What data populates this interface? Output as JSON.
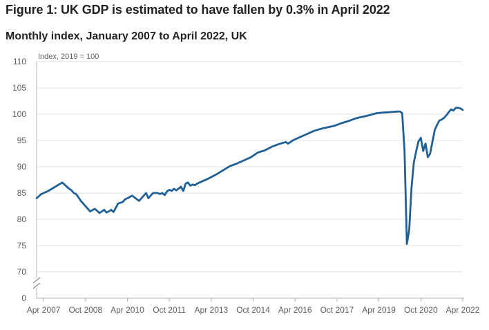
{
  "chart_data": {
    "type": "line",
    "title": "Figure 1: UK GDP is estimated to have fallen by 0.3% in April 2022",
    "subtitle": "Monthly index, January 2007 to April 2022, UK",
    "ylabel": "Index, 2019 = 100",
    "ylim": [
      0,
      110
    ],
    "y_axis_break": true,
    "y_ticks": [
      0,
      70,
      75,
      80,
      85,
      90,
      95,
      100,
      105,
      110
    ],
    "x_tick_labels": [
      "Apr 2007",
      "Oct 2008",
      "Apr 2010",
      "Oct 2011",
      "Apr 2013",
      "Oct 2014",
      "Apr 2016",
      "Oct 2017",
      "Apr 2019",
      "Oct 2020",
      "Apr 2022"
    ],
    "grid": "horizontal",
    "line_color": "#206095",
    "x_start": "2007-01",
    "x_end": "2022-04",
    "series": [
      {
        "name": "",
        "x": [
          "2007-01",
          "2007-03",
          "2007-06",
          "2007-09",
          "2007-12",
          "2008-03",
          "2008-04",
          "2008-05",
          "2008-06",
          "2008-08",
          "2008-10",
          "2008-12",
          "2009-02",
          "2009-04",
          "2009-05",
          "2009-06",
          "2009-07",
          "2009-08",
          "2009-09",
          "2009-10",
          "2009-12",
          "2010-02",
          "2010-03",
          "2010-04",
          "2010-06",
          "2010-09",
          "2010-12",
          "2011-01",
          "2011-03",
          "2011-05",
          "2011-06",
          "2011-07",
          "2011-08",
          "2011-09",
          "2011-10",
          "2011-11",
          "2011-12",
          "2012-01",
          "2012-03",
          "2012-04",
          "2012-05",
          "2012-06",
          "2012-07",
          "2012-08",
          "2012-09",
          "2012-10",
          "2012-12",
          "2013-03",
          "2013-06",
          "2013-09",
          "2013-12",
          "2014-03",
          "2014-06",
          "2014-09",
          "2014-12",
          "2015-03",
          "2015-06",
          "2015-09",
          "2015-12",
          "2016-01",
          "2016-03",
          "2016-06",
          "2016-09",
          "2016-12",
          "2017-03",
          "2017-06",
          "2017-09",
          "2017-12",
          "2018-03",
          "2018-06",
          "2018-09",
          "2018-12",
          "2019-03",
          "2019-06",
          "2019-09",
          "2019-12",
          "2020-01",
          "2020-02",
          "2020-03",
          "2020-04",
          "2020-05",
          "2020-06",
          "2020-07",
          "2020-08",
          "2020-09",
          "2020-10",
          "2020-11",
          "2020-12",
          "2021-01",
          "2021-02",
          "2021-03",
          "2021-04",
          "2021-05",
          "2021-06",
          "2021-07",
          "2021-08",
          "2021-09",
          "2021-10",
          "2021-11",
          "2021-12",
          "2022-01",
          "2022-02",
          "2022-03",
          "2022-04"
        ],
        "values": [
          84.0,
          84.8,
          85.4,
          86.2,
          87.0,
          85.8,
          85.5,
          85.0,
          84.8,
          83.5,
          82.5,
          81.5,
          82.0,
          81.2,
          81.5,
          81.8,
          81.3,
          81.5,
          81.8,
          81.4,
          83.0,
          83.3,
          83.8,
          84.0,
          84.5,
          83.5,
          85.0,
          84.0,
          85.0,
          85.0,
          84.8,
          85.0,
          84.6,
          85.3,
          85.6,
          85.4,
          85.8,
          85.5,
          86.2,
          85.4,
          86.8,
          87.0,
          86.4,
          86.6,
          86.5,
          86.8,
          87.2,
          87.8,
          88.5,
          89.3,
          90.1,
          90.6,
          91.2,
          91.8,
          92.7,
          93.1,
          93.8,
          94.3,
          94.7,
          94.4,
          95.0,
          95.6,
          96.2,
          96.8,
          97.2,
          97.5,
          97.8,
          98.3,
          98.7,
          99.2,
          99.5,
          99.8,
          100.2,
          100.3,
          100.4,
          100.5,
          100.5,
          100.2,
          93.0,
          75.3,
          78.0,
          86.0,
          90.8,
          93.0,
          94.8,
          95.5,
          93.0,
          94.4,
          91.8,
          92.5,
          94.8,
          97.0,
          98.0,
          98.8,
          99.0,
          99.3,
          99.8,
          100.4,
          100.9,
          100.7,
          101.2,
          101.2,
          101.1,
          100.8
        ]
      }
    ]
  }
}
